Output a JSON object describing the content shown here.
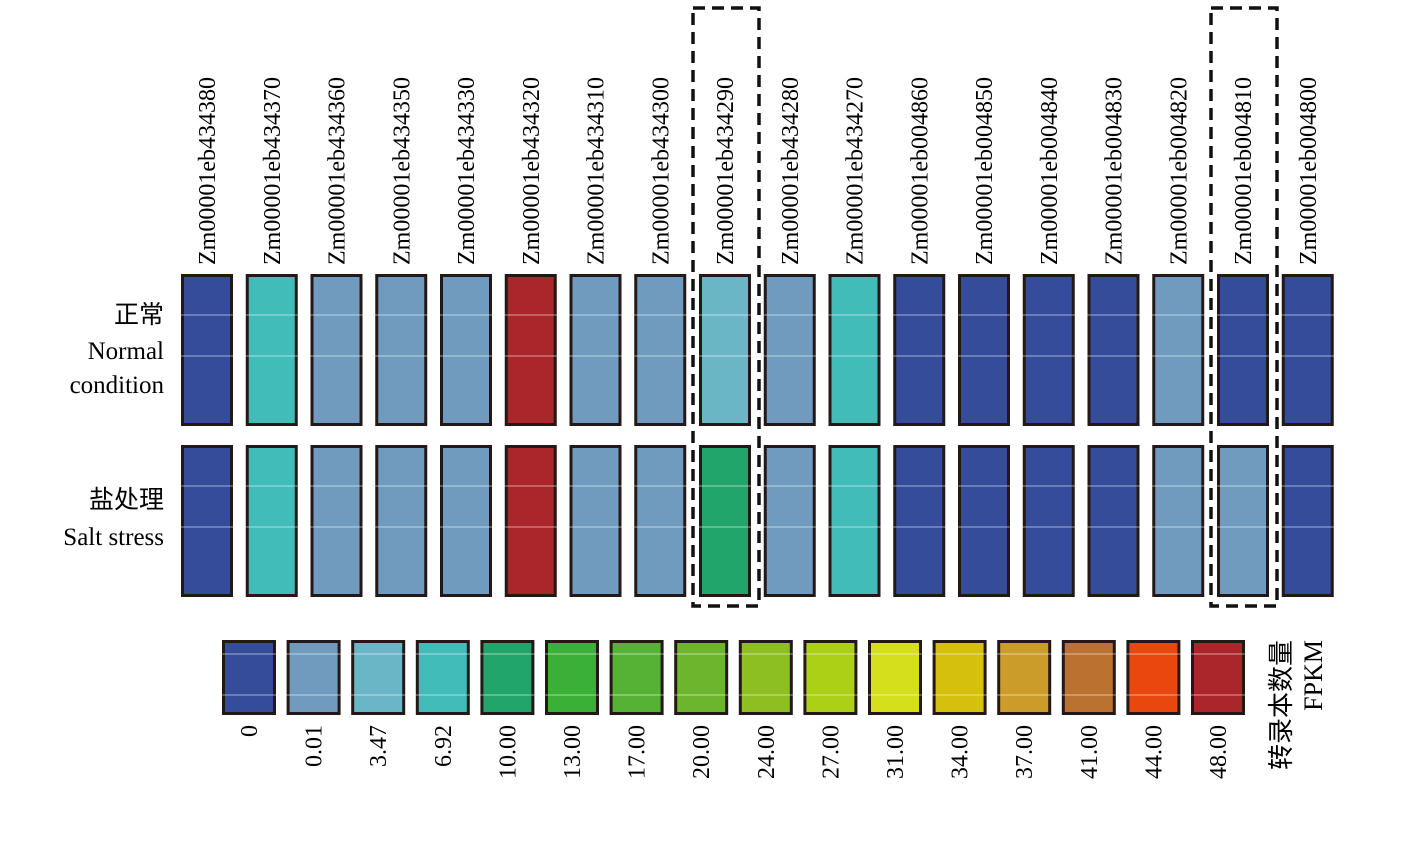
{
  "chart_data": {
    "type": "heatmap",
    "title": "",
    "columns": [
      "Zm00001eb434380",
      "Zm00001eb434370",
      "Zm00001eb434360",
      "Zm00001eb434350",
      "Zm00001eb434330",
      "Zm00001eb434320",
      "Zm00001eb434310",
      "Zm00001eb434300",
      "Zm00001eb434290",
      "Zm00001eb434280",
      "Zm00001eb434270",
      "Zm00001eb004860",
      "Zm00001eb004850",
      "Zm00001eb004840",
      "Zm00001eb004830",
      "Zm00001eb004820",
      "Zm00001eb004810",
      "Zm00001eb004800"
    ],
    "rows": [
      {
        "label_cn": "正常",
        "label_en": [
          "Normal",
          "condition"
        ],
        "values": [
          0,
          6.92,
          0.01,
          0.01,
          0.01,
          48.0,
          0.01,
          0.01,
          3.47,
          0.01,
          6.92,
          0,
          0,
          0,
          0,
          0.01,
          0,
          0
        ]
      },
      {
        "label_cn": "盐处理",
        "label_en": [
          "Salt stress"
        ],
        "values": [
          0,
          6.92,
          0.01,
          0.01,
          0.01,
          48.0,
          0.01,
          0.01,
          10.0,
          0.01,
          6.92,
          0,
          0,
          0,
          0,
          0.01,
          0.01,
          0
        ]
      }
    ],
    "highlighted_columns": [
      "Zm00001eb434290",
      "Zm00001eb004810"
    ],
    "legend": {
      "title_cn": "转录本数量",
      "title_en": "FPKM",
      "ticks": [
        "0",
        "0.01",
        "3.47",
        "6.92",
        "10.00",
        "13.00",
        "17.00",
        "20.00",
        "24.00",
        "27.00",
        "31.00",
        "34.00",
        "37.00",
        "41.00",
        "44.00",
        "48.00"
      ],
      "values": [
        0,
        0.01,
        3.47,
        6.92,
        10.0,
        13.0,
        17.0,
        20.0,
        24.0,
        27.0,
        31.0,
        34.0,
        37.0,
        41.0,
        44.0,
        48.0
      ],
      "colors": [
        "#354c9a",
        "#709bbf",
        "#6bb6c6",
        "#42bcb9",
        "#21a56a",
        "#3bb036",
        "#56b235",
        "#6eb52e",
        "#8dbf22",
        "#acd015",
        "#d6df1b",
        "#d5c00e",
        "#cb9c29",
        "#bb7230",
        "#e8470d",
        "#ab262a"
      ]
    }
  }
}
